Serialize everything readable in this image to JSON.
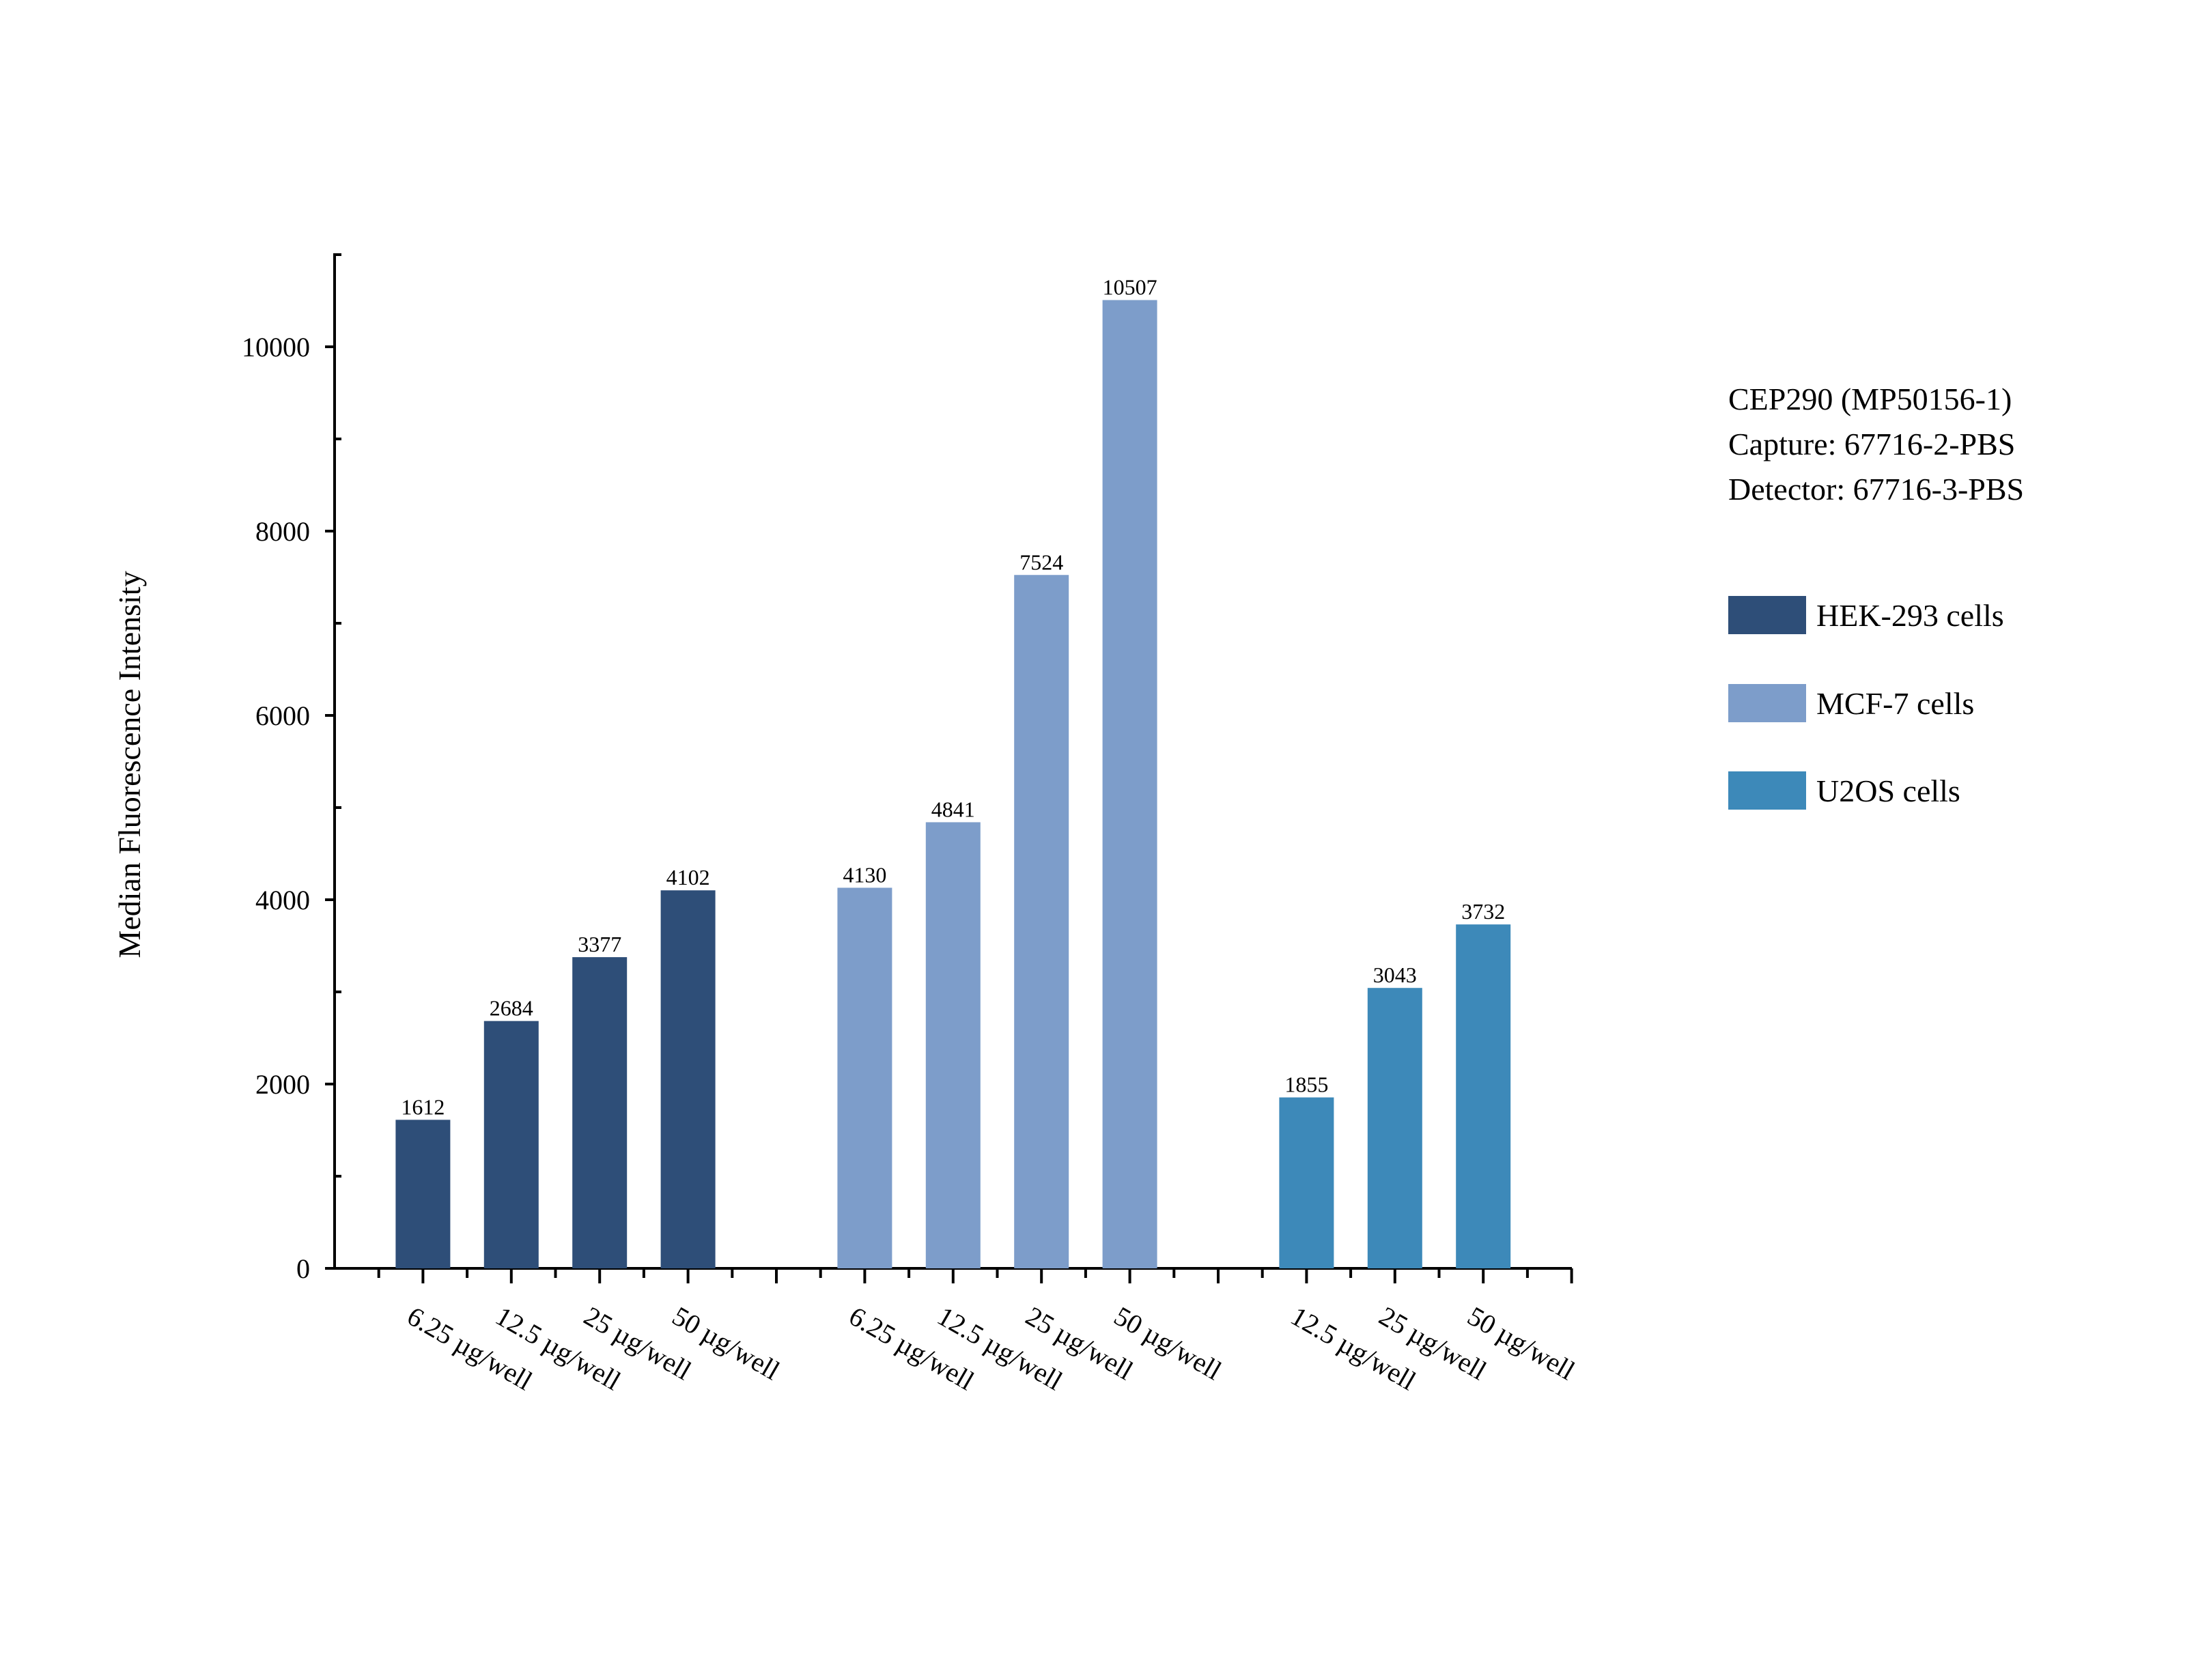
{
  "chart_data": {
    "type": "bar",
    "title": "",
    "ylabel": "Median Fluorescence Intensity",
    "xlabel": "",
    "ylim": [
      0,
      11000
    ],
    "yticks": [
      0,
      2000,
      4000,
      6000,
      8000,
      10000
    ],
    "grid": false,
    "legend_position": "right",
    "groups": [
      {
        "name": "HEK-293 cells",
        "color": "#2e4e78",
        "categories": [
          "6.25 µg/well",
          "12.5 µg/well",
          "25 µg/well",
          "50 µg/well"
        ],
        "values": [
          1612,
          2684,
          3377,
          4102
        ]
      },
      {
        "name": "MCF-7 cells",
        "color": "#7d9dca",
        "categories": [
          "6.25 µg/well",
          "12.5 µg/well",
          "25 µg/well",
          "50 µg/well"
        ],
        "values": [
          4130,
          4841,
          7524,
          10507
        ]
      },
      {
        "name": "U2OS cells",
        "color": "#3d89b9",
        "categories": [
          "12.5 µg/well",
          "25 µg/well",
          "50 µg/well"
        ],
        "values": [
          1855,
          3043,
          3732
        ]
      }
    ]
  },
  "info": {
    "line1": "CEP290 (MP50156-1)",
    "line2": "Capture: 67716-2-PBS",
    "line3": "Detector: 67716-3-PBS"
  }
}
